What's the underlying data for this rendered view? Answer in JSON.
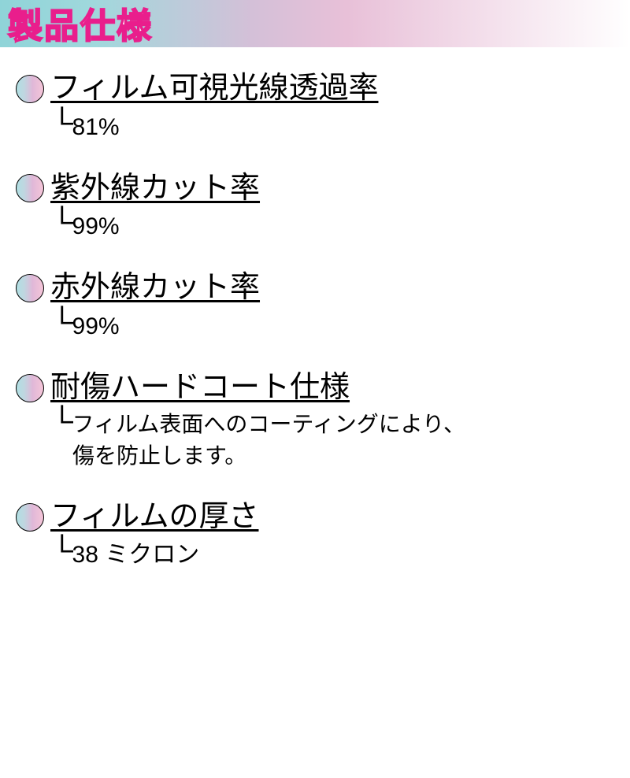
{
  "header": {
    "title": "製品仕様",
    "gradient_colors": [
      "#8fd4d8",
      "#a0d8dc",
      "#d4c0d8",
      "#e8c0d8",
      "#ffffff"
    ],
    "title_color": "#ffffff",
    "title_stroke_color": "#e91e8c",
    "title_fontsize": 44
  },
  "bullet_style": {
    "gradient_colors": [
      "#b0e0e3",
      "#c0d5e0",
      "#e0b8d8",
      "#f5c5d8"
    ],
    "border_color": "#000000",
    "diameter": 36
  },
  "specs": [
    {
      "label": "フィルム可視光線透過率",
      "value": "81%"
    },
    {
      "label": "紫外線カット率",
      "value": "99%"
    },
    {
      "label": "赤外線カット率",
      "value": "99%"
    },
    {
      "label": "耐傷ハードコート仕様",
      "desc_line1": "フィルム表面へのコーティングにより、",
      "desc_line2": "傷を防止します。"
    },
    {
      "label": "フィルムの厚さ",
      "value": "38 ミクロン"
    }
  ],
  "typography": {
    "label_fontsize": 38,
    "value_fontsize": 30,
    "desc_fontsize": 28
  }
}
